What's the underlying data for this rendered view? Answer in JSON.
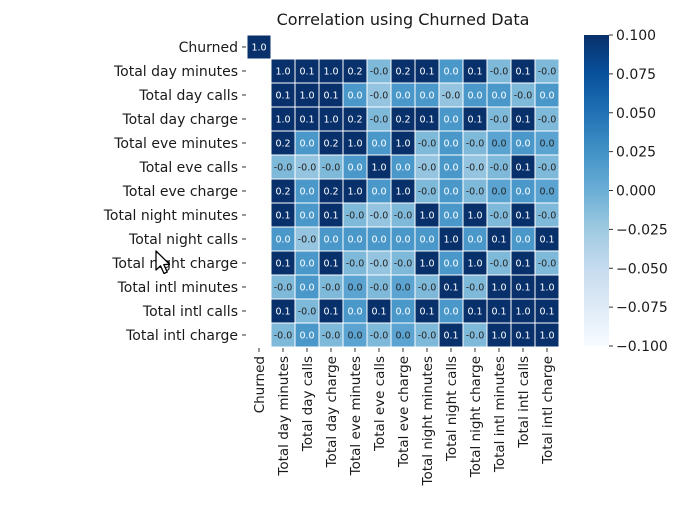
{
  "chart_data": {
    "type": "heatmap",
    "title": "Correlation using Churned Data",
    "rows": [
      "Churned",
      "Total day minutes",
      "Total day calls",
      "Total day charge",
      "Total eve minutes",
      "Total eve calls",
      "Total eve charge",
      "Total night minutes",
      "Total night calls",
      "Total night charge",
      "Total intl minutes",
      "Total intl calls",
      "Total intl charge"
    ],
    "columns": [
      "Churned",
      "Total day minutes",
      "Total day calls",
      "Total day charge",
      "Total eve minutes",
      "Total eve calls",
      "Total eve charge",
      "Total night minutes",
      "Total night calls",
      "Total night charge",
      "Total intl minutes",
      "Total intl calls",
      "Total intl charge"
    ],
    "mask": "upper-triangle-first-row",
    "labels": [
      [
        "1.0"
      ],
      [
        "",
        "1.0",
        "0.1",
        "1.0",
        "0.2",
        "-0.0",
        "0.2",
        "0.1",
        "0.0",
        "0.1",
        "-0.0",
        "0.1",
        "-0.0"
      ],
      [
        "",
        "0.1",
        "1.0",
        "0.1",
        "0.0",
        "-0.0",
        "0.0",
        "0.0",
        "-0.0",
        "0.0",
        "0.0",
        "-0.0",
        "0.0"
      ],
      [
        "",
        "1.0",
        "0.1",
        "1.0",
        "0.2",
        "-0.0",
        "0.2",
        "0.1",
        "0.0",
        "0.1",
        "-0.0",
        "0.1",
        "-0.0"
      ],
      [
        "",
        "0.2",
        "0.0",
        "0.2",
        "1.0",
        "0.0",
        "1.0",
        "-0.0",
        "0.0",
        "-0.0",
        "0.0",
        "0.0",
        "0.0"
      ],
      [
        "",
        "-0.0",
        "-0.0",
        "-0.0",
        "0.0",
        "1.0",
        "0.0",
        "-0.0",
        "0.0",
        "-0.0",
        "-0.0",
        "0.1",
        "-0.0"
      ],
      [
        "",
        "0.2",
        "0.0",
        "0.2",
        "1.0",
        "0.0",
        "1.0",
        "-0.0",
        "0.0",
        "-0.0",
        "0.0",
        "0.0",
        "0.0"
      ],
      [
        "",
        "0.1",
        "0.0",
        "0.1",
        "-0.0",
        "-0.0",
        "-0.0",
        "1.0",
        "0.0",
        "1.0",
        "-0.0",
        "0.1",
        "-0.0"
      ],
      [
        "",
        "0.0",
        "-0.0",
        "0.0",
        "0.0",
        "0.0",
        "0.0",
        "0.0",
        "1.0",
        "0.0",
        "0.1",
        "0.0",
        "0.1"
      ],
      [
        "",
        "0.1",
        "0.0",
        "0.1",
        "-0.0",
        "-0.0",
        "-0.0",
        "1.0",
        "0.0",
        "1.0",
        "-0.0",
        "0.1",
        "-0.0"
      ],
      [
        "",
        "-0.0",
        "0.0",
        "-0.0",
        "0.0",
        "-0.0",
        "0.0",
        "-0.0",
        "0.1",
        "-0.0",
        "1.0",
        "0.1",
        "1.0"
      ],
      [
        "",
        "0.1",
        "-0.0",
        "0.1",
        "0.0",
        "0.1",
        "0.0",
        "0.1",
        "0.0",
        "0.1",
        "0.1",
        "1.0",
        "0.1"
      ],
      [
        "",
        "-0.0",
        "0.0",
        "-0.0",
        "0.0",
        "-0.0",
        "0.0",
        "-0.0",
        "0.1",
        "-0.0",
        "1.0",
        "0.1",
        "1.0"
      ]
    ],
    "values": [
      [
        1.0
      ],
      [
        null,
        1.0,
        0.1,
        1.0,
        0.2,
        -0.01,
        0.2,
        0.1,
        0.02,
        0.1,
        -0.01,
        0.1,
        -0.01
      ],
      [
        null,
        0.1,
        1.0,
        0.1,
        0.02,
        -0.02,
        0.02,
        0.02,
        -0.02,
        0.02,
        0.02,
        -0.01,
        0.02
      ],
      [
        null,
        1.0,
        0.1,
        1.0,
        0.2,
        -0.01,
        0.2,
        0.1,
        0.02,
        0.1,
        -0.01,
        0.1,
        -0.01
      ],
      [
        null,
        0.2,
        0.02,
        0.2,
        1.0,
        0.02,
        1.0,
        -0.01,
        0.02,
        -0.01,
        0.01,
        0.02,
        0.01
      ],
      [
        null,
        -0.01,
        -0.02,
        -0.01,
        0.02,
        1.0,
        0.02,
        -0.02,
        0.02,
        -0.02,
        -0.01,
        0.1,
        -0.01
      ],
      [
        null,
        0.2,
        0.02,
        0.2,
        1.0,
        0.02,
        1.0,
        -0.01,
        0.02,
        -0.01,
        0.01,
        0.02,
        0.01
      ],
      [
        null,
        0.1,
        0.02,
        0.1,
        -0.01,
        -0.02,
        -0.01,
        1.0,
        0.02,
        1.0,
        -0.01,
        0.1,
        -0.01
      ],
      [
        null,
        0.02,
        -0.02,
        0.02,
        0.02,
        0.02,
        0.02,
        0.02,
        1.0,
        0.02,
        0.1,
        0.02,
        0.1
      ],
      [
        null,
        0.1,
        0.02,
        0.1,
        -0.01,
        -0.02,
        -0.01,
        1.0,
        0.02,
        1.0,
        -0.01,
        0.1,
        -0.01
      ],
      [
        null,
        -0.01,
        0.02,
        -0.01,
        0.01,
        -0.01,
        0.01,
        -0.01,
        0.1,
        -0.01,
        1.0,
        0.1,
        1.0
      ],
      [
        null,
        0.1,
        -0.01,
        0.1,
        0.02,
        0.1,
        0.02,
        0.1,
        0.02,
        0.1,
        0.1,
        1.0,
        0.1
      ],
      [
        null,
        -0.01,
        0.02,
        -0.01,
        0.01,
        -0.01,
        0.01,
        -0.01,
        0.1,
        -0.01,
        1.0,
        0.1,
        1.0
      ]
    ],
    "colorbar": {
      "vmin": -0.1,
      "vmax": 0.1,
      "ticks": [
        "0.100",
        "0.075",
        "0.050",
        "0.025",
        "0.000",
        "−0.025",
        "−0.050",
        "−0.075",
        "−0.100"
      ],
      "colormap": "Blues"
    },
    "colors": {
      "dark": "#08306b",
      "light": "#f7fbff",
      "grid": "#ffffff"
    }
  }
}
